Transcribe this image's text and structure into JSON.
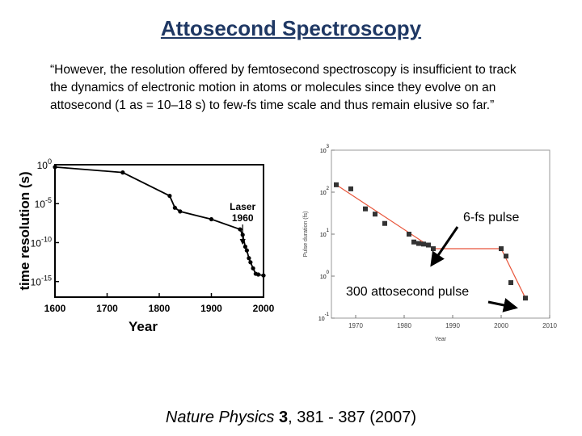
{
  "title": "Attosecond Spectroscopy",
  "quote": "“However, the resolution offered by femtosecond spectroscopy is insufficient to track the dynamics of electronic motion in atoms or molecules since they evolve on an attosecond (1 as = 10–18 s) to few-fs time scale and thus remain elusive so far.”",
  "callouts": {
    "six_fs": "6-fs pulse",
    "atto": "300 attosecond pulse"
  },
  "citation": {
    "journal": "Nature Physics",
    "volume": "3",
    "rest": ", 381 - 387 (2007)"
  },
  "colors": {
    "title": "#1f3864",
    "left_series": "#000000",
    "right_line": "#e8553a",
    "right_marker": "#333333",
    "arrow": "#000000"
  },
  "chart_data": [
    {
      "type": "line",
      "xlabel": "Year",
      "ylabel": "time resolution (s)",
      "xlim": [
        1600,
        2000
      ],
      "ylim": [
        1e-17,
        1
      ],
      "yscale": "log",
      "xticks": [
        "1600",
        "1700",
        "1800",
        "1900",
        "2000"
      ],
      "yticks": [
        {
          "base": "10",
          "exp": "0",
          "value": 1
        },
        {
          "base": "10",
          "exp": "-5",
          "value": 1e-05
        },
        {
          "base": "10",
          "exp": "-10",
          "value": 1e-10
        },
        {
          "base": "10",
          "exp": "-15",
          "value": 1e-15
        }
      ],
      "annotation": {
        "text1": "Laser",
        "text2": "1960",
        "x": 1960
      },
      "points": [
        [
          1600,
          0.5
        ],
        [
          1730,
          0.1
        ],
        [
          1820,
          0.0001
        ],
        [
          1830,
          3e-06
        ],
        [
          1840,
          1e-06
        ],
        [
          1900,
          1e-07
        ],
        [
          1955,
          5e-09
        ],
        [
          1960,
          1e-09
        ],
        [
          1965,
          3e-11
        ],
        [
          1968,
          1e-11
        ],
        [
          1972,
          1e-12
        ],
        [
          1975,
          3e-13
        ],
        [
          1980,
          5e-14
        ],
        [
          1985,
          1e-14
        ],
        [
          1990,
          8e-15
        ],
        [
          2000,
          6e-15
        ]
      ]
    },
    {
      "type": "scatter",
      "xlabel": "Year",
      "ylabel": "Pulse duration (fs)",
      "xlim": [
        1965,
        2010
      ],
      "ylim": [
        0.1,
        1000
      ],
      "yscale": "log",
      "xticks": [
        "1970",
        "1980",
        "1990",
        "2000",
        "2010"
      ],
      "yticks": [
        {
          "base": "10",
          "exp": "3",
          "value": 1000
        },
        {
          "base": "10",
          "exp": "2",
          "value": 100
        },
        {
          "base": "10",
          "exp": "1",
          "value": 10
        },
        {
          "base": "10",
          "exp": "0",
          "value": 1
        },
        {
          "base": "10",
          "exp": "-1",
          "value": 0.1
        }
      ],
      "points": [
        [
          1966,
          150
        ],
        [
          1969,
          120
        ],
        [
          1972,
          40
        ],
        [
          1974,
          30
        ],
        [
          1976,
          18
        ],
        [
          1981,
          10
        ],
        [
          1982,
          6.5
        ],
        [
          1983,
          6
        ],
        [
          1984,
          5.8
        ],
        [
          1985,
          5.5
        ],
        [
          1986,
          4.5
        ],
        [
          2000,
          4.5
        ],
        [
          2001,
          3
        ],
        [
          2002,
          0.7
        ],
        [
          2005,
          0.3
        ]
      ],
      "trend": [
        [
          1966,
          150
        ],
        [
          1986,
          4.5
        ],
        [
          2000,
          4.5
        ],
        [
          2005,
          0.3
        ]
      ]
    }
  ]
}
